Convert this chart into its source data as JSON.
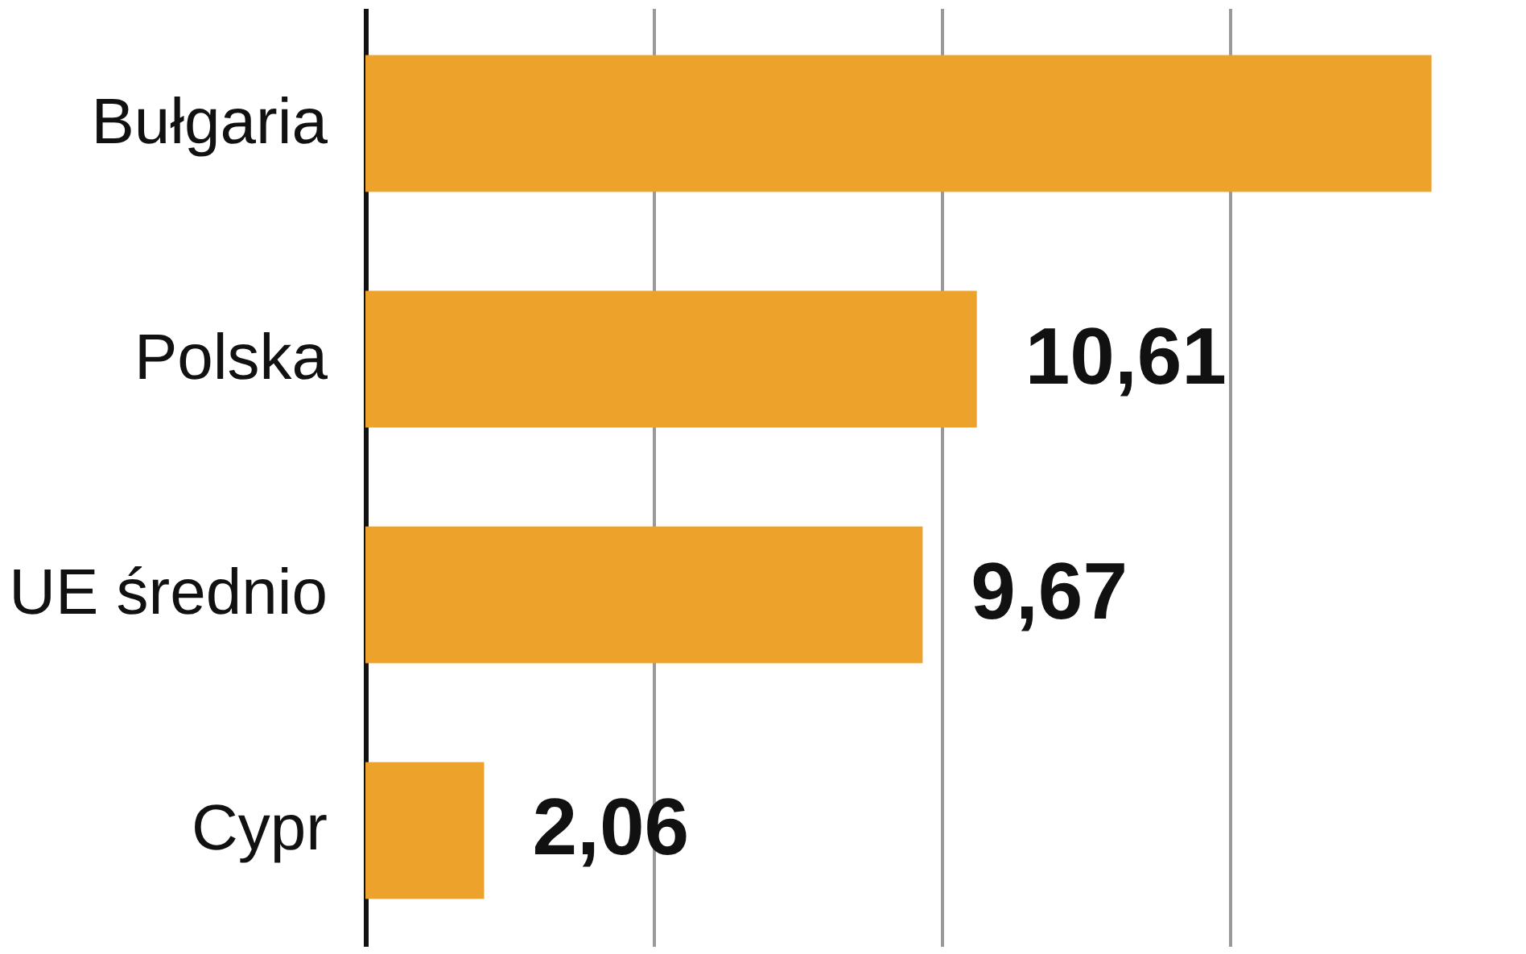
{
  "chart_data": {
    "type": "bar",
    "orientation": "horizontal",
    "categories": [
      "Bułgaria",
      "Polska",
      "UE średnio",
      "Cypr"
    ],
    "values": [
      18.5,
      10.61,
      9.67,
      2.06
    ],
    "value_labels": [
      null,
      "10,61",
      "9,67",
      "2,06"
    ],
    "color": "#eda22c",
    "xlim": [
      0,
      20
    ],
    "xticks": [
      {
        "value": 0,
        "label": null
      },
      {
        "value": 5,
        "label": null
      },
      {
        "value": 10,
        "label": null
      },
      {
        "value": 15,
        "label": null
      }
    ],
    "tick_labels": "y",
    "grid": "x"
  }
}
